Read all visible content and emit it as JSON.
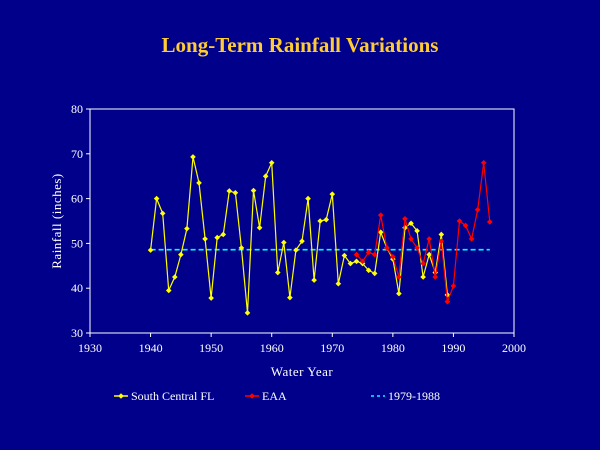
{
  "chart_data": {
    "type": "line",
    "title": "Long-Term Rainfall Variations",
    "xlabel": "Water Year",
    "ylabel": "Rainfall (inches)",
    "xlim": [
      1930,
      2000
    ],
    "ylim": [
      30,
      80
    ],
    "x_ticks": [
      1930,
      1940,
      1950,
      1960,
      1970,
      1980,
      1990,
      2000
    ],
    "y_ticks": [
      30,
      40,
      50,
      60,
      70,
      80
    ],
    "grid": false,
    "legend_position": "bottom",
    "series": [
      {
        "name": "South Central FL",
        "color": "#FFFF00",
        "marker": "diamond",
        "x": [
          1940,
          1941,
          1942,
          1943,
          1944,
          1945,
          1946,
          1947,
          1948,
          1949,
          1950,
          1951,
          1952,
          1953,
          1954,
          1955,
          1956,
          1957,
          1958,
          1959,
          1960,
          1961,
          1962,
          1963,
          1964,
          1965,
          1966,
          1967,
          1968,
          1969,
          1970,
          1971,
          1972,
          1973,
          1974,
          1975,
          1976,
          1977,
          1978,
          1979,
          1980,
          1981,
          1982,
          1983,
          1984,
          1985,
          1986,
          1987,
          1988,
          1989
        ],
        "y": [
          48.5,
          60,
          56.7,
          39.5,
          42.5,
          47.5,
          53.3,
          69.3,
          63.5,
          51,
          37.8,
          51.3,
          52,
          61.7,
          61.3,
          49,
          34.5,
          61.8,
          53.5,
          65,
          68,
          43.5,
          50.2,
          37.9,
          48.5,
          50.5,
          60,
          41.8,
          55,
          55.3,
          61,
          41,
          47.3,
          45.5,
          46,
          45.5,
          44,
          43.3,
          52.5,
          49,
          46.5,
          38.8,
          53.5,
          54.5,
          52.8,
          42.5,
          47.5,
          43.5,
          52,
          38.5
        ]
      },
      {
        "name": "EAA",
        "color": "#FF0000",
        "marker": "diamond",
        "x": [
          1974,
          1975,
          1976,
          1977,
          1978,
          1979,
          1980,
          1981,
          1982,
          1983,
          1984,
          1985,
          1986,
          1987,
          1988,
          1989,
          1990,
          1991,
          1992,
          1993,
          1994,
          1995,
          1996
        ],
        "y": [
          47.5,
          46,
          48,
          47.5,
          56.3,
          49,
          47,
          42.5,
          55.5,
          51,
          49,
          45.5,
          51,
          42.5,
          50.5,
          37,
          40.5,
          55,
          54,
          51,
          57.5,
          68,
          54.8
        ]
      },
      {
        "name": "1979-1988",
        "color": "#00FFFF",
        "style": "dashed",
        "x": [
          1940,
          1996
        ],
        "y": [
          48.6,
          48.6
        ]
      }
    ]
  }
}
